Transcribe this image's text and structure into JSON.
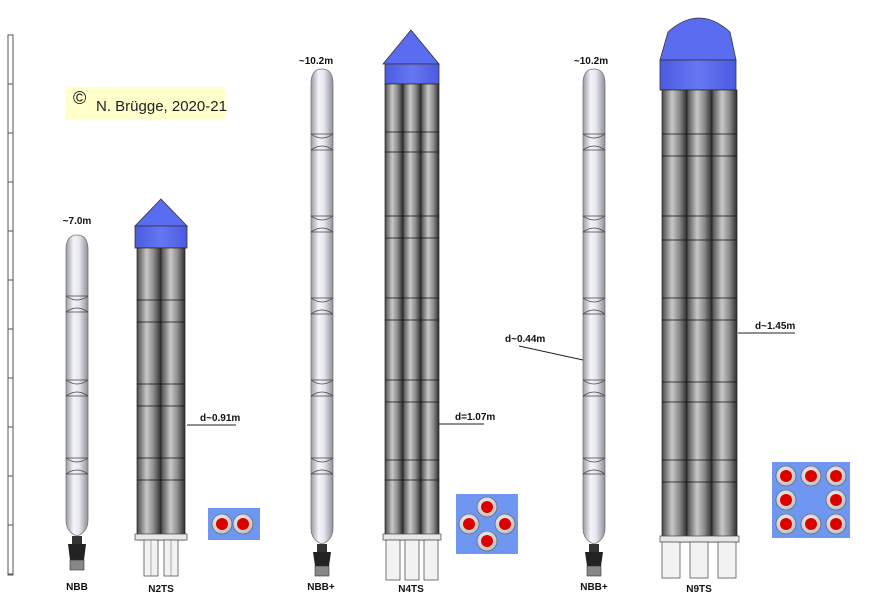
{
  "copyright": {
    "symbol": "©",
    "text": "N. Brügge, 2020-21"
  },
  "labels": {
    "nbb_1": "NBB",
    "n2ts": "N2TS",
    "nbb_plus_1": "NBB+",
    "n4ts": "N4TS",
    "nbb_plus_2": "NBB+",
    "n9ts": "N9TS"
  },
  "dimensions": {
    "nbb_length": "~7.0m",
    "nbb_plus_1_length": "~10.2m",
    "nbb_plus_2_length": "~10.2m",
    "n2ts_diameter": "d~0.91m",
    "n4ts_diameter": "d=1.07m",
    "nbb_plus_diameter": "d~0.44m",
    "n9ts_diameter": "d~1.45m"
  },
  "colors": {
    "fairing": "#5a6cf0",
    "cross_section_bg": "#6f96f0",
    "motor_fill": "#dd0000",
    "copyright_bg": "#ffffcc"
  }
}
